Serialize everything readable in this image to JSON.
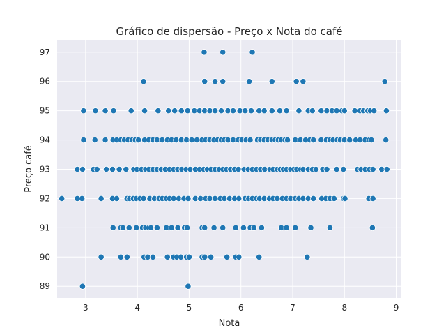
{
  "colors": {
    "plot_background": "#EAEAF2",
    "grid": "#FFFFFF",
    "marker_fill": "#1F77B4",
    "marker_edge": "#FFFFFF"
  },
  "chart_data": {
    "type": "scatter",
    "title": "Gráfico de dispersão - Preço x Nota do café",
    "xlabel": "Nota",
    "ylabel": "Preço café",
    "xlim": [
      2.45,
      9.1
    ],
    "ylim": [
      88.6,
      97.4
    ],
    "x_ticks": [
      3,
      4,
      5,
      6,
      7,
      8,
      9
    ],
    "y_ticks": [
      89,
      90,
      91,
      92,
      93,
      94,
      95,
      96,
      97
    ],
    "grid": true,
    "points_by_price": [
      {
        "y": 97,
        "x": [
          5.29,
          5.65,
          6.22
        ]
      },
      {
        "y": 96,
        "x": [
          4.12,
          5.3,
          5.5,
          5.65,
          6.16,
          6.6,
          7.07,
          7.2,
          8.78
        ]
      },
      {
        "y": 95,
        "x": [
          2.96,
          3.19,
          3.38,
          3.54,
          3.88,
          4.14,
          4.4,
          4.6,
          4.72,
          4.85,
          4.97,
          5.1,
          5.2,
          5.3,
          5.4,
          5.5,
          5.62,
          5.75,
          5.85,
          5.98,
          6.08,
          6.2,
          6.35,
          6.45,
          6.6,
          6.75,
          6.88,
          7.12,
          7.3,
          7.38,
          7.55,
          7.66,
          7.76,
          7.85,
          7.95,
          8.0,
          8.2,
          8.3,
          8.37,
          8.45,
          8.5,
          8.57,
          8.81
        ]
      },
      {
        "y": 94,
        "x": [
          2.96,
          3.18,
          3.38,
          3.53,
          3.6,
          3.68,
          3.75,
          3.82,
          3.9,
          3.96,
          4.02,
          4.14,
          4.22,
          4.3,
          4.38,
          4.48,
          4.58,
          4.66,
          4.75,
          4.85,
          4.95,
          5.05,
          5.15,
          5.25,
          5.32,
          5.4,
          5.48,
          5.55,
          5.62,
          5.68,
          5.75,
          5.85,
          5.95,
          6.02,
          6.1,
          6.18,
          6.32,
          6.38,
          6.45,
          6.52,
          6.6,
          6.66,
          6.72,
          6.78,
          6.85,
          6.9,
          7.05,
          7.15,
          7.25,
          7.33,
          7.4,
          7.55,
          7.65,
          7.72,
          7.78,
          7.86,
          7.92,
          8.0,
          8.1,
          8.22,
          8.3,
          8.4,
          8.48,
          8.52,
          8.8
        ]
      },
      {
        "y": 93,
        "x": [
          2.84,
          2.94,
          3.15,
          3.22,
          3.4,
          3.52,
          3.65,
          3.78,
          3.93,
          3.99,
          4.08,
          4.16,
          4.22,
          4.3,
          4.38,
          4.46,
          4.54,
          4.62,
          4.7,
          4.78,
          4.86,
          4.94,
          5.02,
          5.12,
          5.2,
          5.28,
          5.35,
          5.42,
          5.5,
          5.58,
          5.65,
          5.72,
          5.8,
          5.88,
          5.95,
          6.06,
          6.14,
          6.22,
          6.3,
          6.38,
          6.46,
          6.56,
          6.62,
          6.7,
          6.76,
          6.82,
          6.88,
          6.96,
          7.02,
          7.08,
          7.15,
          7.2,
          7.3,
          7.38,
          7.45,
          7.58,
          7.66,
          7.85,
          7.98,
          8.25,
          8.32,
          8.4,
          8.48,
          8.55,
          8.72,
          8.82
        ]
      },
      {
        "y": 92,
        "x": [
          2.54,
          2.84,
          2.93,
          3.3,
          3.52,
          3.6,
          3.8,
          3.85,
          3.92,
          3.98,
          4.05,
          4.12,
          4.24,
          4.33,
          4.42,
          4.48,
          4.56,
          4.62,
          4.7,
          4.8,
          4.9,
          4.98,
          5.12,
          5.22,
          5.32,
          5.4,
          5.5,
          5.6,
          5.68,
          5.78,
          5.88,
          5.96,
          6.08,
          6.15,
          6.22,
          6.3,
          6.36,
          6.45,
          6.55,
          6.62,
          6.7,
          6.8,
          6.88,
          6.96,
          7.05,
          7.12,
          7.2,
          7.3,
          7.4,
          7.56,
          7.64,
          7.72,
          7.8,
          7.98,
          8.01,
          8.47,
          8.55
        ]
      },
      {
        "y": 91,
        "x": [
          3.53,
          3.68,
          3.72,
          3.84,
          3.98,
          4.1,
          4.16,
          4.22,
          4.26,
          4.38,
          4.56,
          4.66,
          4.78,
          4.91,
          4.96,
          5.25,
          5.3,
          5.48,
          5.65,
          5.9,
          6.05,
          6.18,
          6.25,
          6.4,
          6.78,
          6.88,
          7.05,
          7.35,
          7.72,
          8.54
        ]
      },
      {
        "y": 90,
        "x": [
          3.3,
          3.68,
          3.8,
          4.13,
          4.2,
          4.3,
          4.58,
          4.7,
          4.76,
          4.84,
          4.95,
          5.0,
          5.25,
          5.3,
          5.42,
          5.73,
          5.9,
          5.96,
          6.35,
          7.28
        ]
      },
      {
        "y": 89,
        "x": [
          2.94,
          4.98
        ]
      }
    ]
  }
}
